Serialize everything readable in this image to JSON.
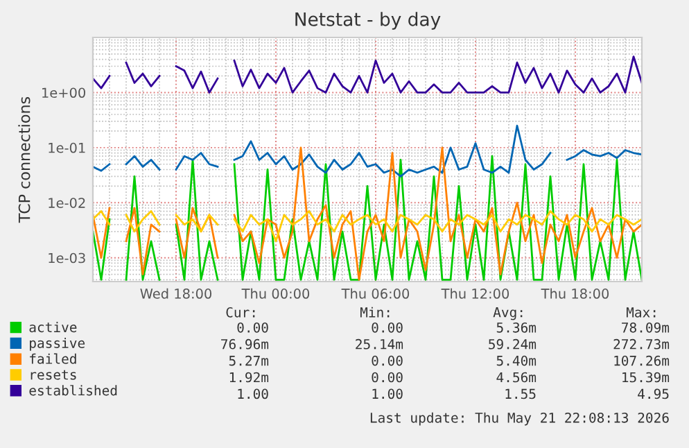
{
  "chart_data": {
    "type": "line",
    "title": "Netstat - by day",
    "ylabel": "TCP connections",
    "log": "y",
    "grid": true,
    "legend": "bottom",
    "marker": "none",
    "line_style": "solid",
    "ylim": [
      0.00037,
      10
    ],
    "yticks": [
      {
        "value": 0.001,
        "label": "1e-03"
      },
      {
        "value": 0.01,
        "label": "1e-02"
      },
      {
        "value": 0.1,
        "label": "1e-01"
      },
      {
        "value": 1,
        "label": "1e+00"
      }
    ],
    "xlim": [
      "2026-05-20T13:00",
      "2026-05-21T22:00"
    ],
    "xticks": [
      {
        "value": "2026-05-20T18:00",
        "label": "Wed 18:00"
      },
      {
        "value": "2026-05-21T00:00",
        "label": "Thu 00:00"
      },
      {
        "value": "2026-05-21T06:00",
        "label": "Thu 06:00"
      },
      {
        "value": "2026-05-21T12:00",
        "label": "Thu 12:00"
      },
      {
        "value": "2026-05-21T18:00",
        "label": "Thu 18:00"
      }
    ],
    "x": [
      "2026-05-20T13:00",
      "2026-05-20T13:30",
      "2026-05-20T14:00",
      "2026-05-20T14:30",
      "2026-05-20T15:00",
      "2026-05-20T15:30",
      "2026-05-20T16:00",
      "2026-05-20T16:30",
      "2026-05-20T17:00",
      "2026-05-20T17:30",
      "2026-05-20T18:00",
      "2026-05-20T18:30",
      "2026-05-20T19:00",
      "2026-05-20T19:30",
      "2026-05-20T20:00",
      "2026-05-20T20:30",
      "2026-05-20T21:00",
      "2026-05-20T21:30",
      "2026-05-20T22:00",
      "2026-05-20T22:30",
      "2026-05-20T23:00",
      "2026-05-20T23:30",
      "2026-05-21T00:00",
      "2026-05-21T00:30",
      "2026-05-21T01:00",
      "2026-05-21T01:30",
      "2026-05-21T02:00",
      "2026-05-21T02:30",
      "2026-05-21T03:00",
      "2026-05-21T03:30",
      "2026-05-21T04:00",
      "2026-05-21T04:30",
      "2026-05-21T05:00",
      "2026-05-21T05:30",
      "2026-05-21T06:00",
      "2026-05-21T06:30",
      "2026-05-21T07:00",
      "2026-05-21T07:30",
      "2026-05-21T08:00",
      "2026-05-21T08:30",
      "2026-05-21T09:00",
      "2026-05-21T09:30",
      "2026-05-21T10:00",
      "2026-05-21T10:30",
      "2026-05-21T11:00",
      "2026-05-21T11:30",
      "2026-05-21T12:00",
      "2026-05-21T12:30",
      "2026-05-21T13:00",
      "2026-05-21T13:30",
      "2026-05-21T14:00",
      "2026-05-21T14:30",
      "2026-05-21T15:00",
      "2026-05-21T15:30",
      "2026-05-21T16:00",
      "2026-05-21T16:30",
      "2026-05-21T17:00",
      "2026-05-21T17:30",
      "2026-05-21T18:00",
      "2026-05-21T18:30",
      "2026-05-21T19:00",
      "2026-05-21T19:30",
      "2026-05-21T20:00",
      "2026-05-21T20:30",
      "2026-05-21T21:00",
      "2026-05-21T21:30",
      "2026-05-21T22:00"
    ],
    "series": [
      {
        "name": "active",
        "color": "#00cc00",
        "values": [
          0.003,
          0.0004,
          0.005,
          null,
          0.0004,
          0.03,
          0.0004,
          0.002,
          0.0004,
          null,
          0.004,
          0.0004,
          0.06,
          0.0004,
          0.002,
          0.0004,
          null,
          0.05,
          0.0004,
          0.003,
          0.0004,
          0.04,
          0.0004,
          0.0004,
          0.005,
          0.0004,
          0.002,
          0.0004,
          0.05,
          0.0004,
          0.003,
          0.0004,
          0.0004,
          0.02,
          0.0004,
          0.004,
          0.0004,
          0.06,
          0.0004,
          0.002,
          0.0004,
          0.03,
          0.0004,
          0.0004,
          0.02,
          0.0004,
          0.004,
          0.0004,
          0.07,
          0.0004,
          0.003,
          0.0004,
          0.05,
          0.0004,
          0.0004,
          0.03,
          0.0004,
          0.004,
          0.0004,
          0.05,
          0.0004,
          0.002,
          0.0004,
          0.06,
          0.0004,
          0.003,
          0.0004
        ]
      },
      {
        "name": "passive",
        "color": "#0066b3",
        "values": [
          0.045,
          0.038,
          0.05,
          null,
          0.05,
          0.07,
          0.045,
          0.06,
          0.04,
          null,
          0.04,
          0.07,
          0.06,
          0.08,
          0.05,
          0.045,
          null,
          0.06,
          0.07,
          0.13,
          0.06,
          0.08,
          0.05,
          0.07,
          0.04,
          0.05,
          0.075,
          0.045,
          0.035,
          0.06,
          0.04,
          0.05,
          0.08,
          0.045,
          0.05,
          0.035,
          0.04,
          0.03,
          0.04,
          0.035,
          0.04,
          0.045,
          0.035,
          0.1,
          0.04,
          0.045,
          0.12,
          0.04,
          0.035,
          0.045,
          0.035,
          0.25,
          0.06,
          0.04,
          0.05,
          0.08,
          null,
          0.06,
          0.07,
          0.09,
          0.075,
          0.07,
          0.08,
          0.065,
          0.09,
          0.08,
          0.075
        ]
      },
      {
        "name": "failed",
        "color": "#ff8000",
        "values": [
          0.006,
          0.001,
          0.008,
          null,
          0.002,
          0.008,
          0.0005,
          0.004,
          0.003,
          null,
          0.005,
          0.001,
          0.008,
          0.003,
          0.006,
          0.001,
          null,
          0.006,
          0.002,
          0.003,
          0.0008,
          0.005,
          0.004,
          0.001,
          0.003,
          0.1,
          0.002,
          0.005,
          0.009,
          0.001,
          0.004,
          0.007,
          0.0004,
          0.003,
          0.006,
          0.002,
          0.08,
          0.001,
          0.005,
          0.003,
          0.0006,
          0.004,
          0.1,
          0.002,
          0.006,
          0.001,
          0.005,
          0.003,
          0.008,
          0.0005,
          0.003,
          0.01,
          0.002,
          0.006,
          0.0008,
          0.004,
          0.002,
          0.006,
          0.001,
          0.003,
          0.008,
          0.002,
          0.004,
          0.001,
          0.005,
          0.003,
          0.004
        ]
      },
      {
        "name": "resets",
        "color": "#ffcc00",
        "values": [
          0.005,
          0.007,
          0.004,
          null,
          0.006,
          0.003,
          0.005,
          0.007,
          0.004,
          null,
          0.006,
          0.004,
          0.005,
          0.003,
          0.006,
          0.004,
          null,
          0.005,
          0.003,
          0.006,
          0.004,
          0.005,
          0.002,
          0.006,
          0.004,
          0.005,
          0.007,
          0.004,
          0.005,
          0.003,
          0.006,
          0.004,
          0.005,
          0.006,
          0.004,
          0.005,
          0.003,
          0.006,
          0.005,
          0.004,
          0.006,
          0.005,
          0.003,
          0.005,
          0.004,
          0.006,
          0.005,
          0.004,
          0.006,
          0.003,
          0.005,
          0.004,
          0.006,
          0.005,
          0.004,
          0.007,
          0.005,
          0.004,
          0.006,
          0.005,
          0.003,
          0.005,
          0.004,
          0.006,
          0.005,
          0.004,
          0.005
        ]
      },
      {
        "name": "established",
        "color": "#330099",
        "values": [
          1.8,
          1.2,
          2.0,
          null,
          3.5,
          1.5,
          2.2,
          1.3,
          2.0,
          null,
          3.0,
          2.5,
          1.2,
          2.4,
          1.0,
          1.8,
          null,
          3.8,
          1.3,
          2.6,
          1.2,
          2.2,
          1.5,
          2.8,
          1.0,
          1.6,
          2.5,
          1.2,
          1.0,
          2.2,
          1.3,
          1.0,
          2.0,
          1.0,
          3.8,
          1.5,
          2.2,
          1.0,
          1.6,
          1.0,
          1.0,
          1.4,
          1.0,
          1.0,
          1.5,
          1.0,
          1.0,
          1.0,
          1.3,
          1.0,
          1.0,
          3.5,
          1.5,
          2.8,
          1.2,
          2.2,
          1.0,
          2.5,
          1.4,
          1.0,
          1.8,
          1.0,
          1.3,
          2.2,
          1.0,
          4.5,
          1.5
        ]
      }
    ],
    "annotations": [
      "Cur:",
      "Min:",
      "Avg:",
      "Max:",
      "0.00",
      "0.00",
      "5.36m",
      "78.09m",
      "76.96m",
      "25.14m",
      "59.24m",
      "272.73m",
      "5.27m",
      "0.00",
      "5.40m",
      "107.26m",
      "1.92m",
      "0.00",
      "4.56m",
      "15.39m",
      "1.00",
      "1.00",
      "1.55",
      "4.95",
      "Last update: Thu May 21 22:08:13 2026"
    ]
  }
}
